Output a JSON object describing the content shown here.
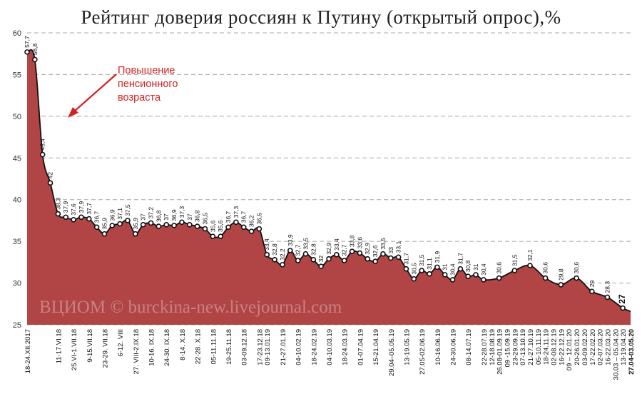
{
  "chart_data": {
    "type": "area",
    "title": "Рейтинг доверия россиян к Путину (открытый опрос),%",
    "ylim": [
      25,
      60
    ],
    "yticks": [
      25,
      30,
      35,
      40,
      45,
      50,
      55,
      60
    ],
    "grid": true,
    "fill_color": "#b14444",
    "line_color": "#111111",
    "annotation": {
      "text": [
        "Повышение",
        "пенсионного",
        "возраста"
      ],
      "color": "#d32020"
    },
    "watermark": "ВЦИОМ © burckina-new.livejournal.com",
    "points": [
      {
        "x": "18-24.XII.2017",
        "y": 57.7
      },
      {
        "x": "",
        "y": 56.8
      },
      {
        "x": "",
        "y": 45.4
      },
      {
        "x": "",
        "y": 42
      },
      {
        "x": "11-17.VI.18",
        "y": 38.3
      },
      {
        "x": "",
        "y": 37.9
      },
      {
        "x": "25.VI-1.VII.18",
        "y": 37.6
      },
      {
        "x": "",
        "y": 37.9
      },
      {
        "x": "9-15.VII.18",
        "y": 37.7
      },
      {
        "x": "",
        "y": 36.7
      },
      {
        "x": "23-29. VII.18",
        "y": 35.9
      },
      {
        "x": "",
        "y": 36.9
      },
      {
        "x": "6-12. VIII",
        "y": 37.1
      },
      {
        "x": "",
        "y": 37.5
      },
      {
        "x": "27. VIII-2.IX.18",
        "y": 35.9
      },
      {
        "x": "",
        "y": 37
      },
      {
        "x": "10-16. IX.18",
        "y": 37.2
      },
      {
        "x": "",
        "y": 36.8
      },
      {
        "x": "24-30. IX.18",
        "y": 37
      },
      {
        "x": "",
        "y": 36.9
      },
      {
        "x": "8-14. X.18",
        "y": 37.3
      },
      {
        "x": "",
        "y": 37
      },
      {
        "x": "22-28. X.18",
        "y": 36.8
      },
      {
        "x": "",
        "y": 36.5
      },
      {
        "x": "05-11.11.18",
        "y": 35.6
      },
      {
        "x": "",
        "y": 35.6
      },
      {
        "x": "19-25.11.18",
        "y": 36.7
      },
      {
        "x": "",
        "y": 37.3
      },
      {
        "x": "03-09.12.18",
        "y": 36.7
      },
      {
        "x": "",
        "y": 36.2
      },
      {
        "x": "17-23.12.18",
        "y": 36.5
      },
      {
        "x": "09-13.01.19",
        "y": 33.4
      },
      {
        "x": "",
        "y": 32.8
      },
      {
        "x": "21-27.01.19",
        "y": 32.2
      },
      {
        "x": "",
        "y": 33.9
      },
      {
        "x": "04-10.02.19",
        "y": 32.7
      },
      {
        "x": "",
        "y": 33.5
      },
      {
        "x": "18-24.02.19",
        "y": 32.8
      },
      {
        "x": "",
        "y": 32
      },
      {
        "x": "04-10.03.19",
        "y": 32.9
      },
      {
        "x": "",
        "y": 33.4
      },
      {
        "x": "18-24.03.19",
        "y": 32.7
      },
      {
        "x": "",
        "y": 33.8
      },
      {
        "x": "01-07.04.19",
        "y": 33.6
      },
      {
        "x": "",
        "y": 32.9
      },
      {
        "x": "15-21.04.19",
        "y": 32.6
      },
      {
        "x": "",
        "y": 33.5
      },
      {
        "x": "29.04–05.05.19",
        "y": 33
      },
      {
        "x": "",
        "y": 33.1
      },
      {
        "x": "13-19.05.19",
        "y": 31.7
      },
      {
        "x": "",
        "y": 30.5
      },
      {
        "x": "27.05-02.06.19",
        "y": 31.5
      },
      {
        "x": "",
        "y": 31.1
      },
      {
        "x": "10-16.06.19",
        "y": 31.9
      },
      {
        "x": "",
        "y": 31
      },
      {
        "x": "24-30.06.19",
        "y": 30.4
      },
      {
        "x": "",
        "y": 31.7
      },
      {
        "x": "08-14.07.19",
        "y": 30.8
      },
      {
        "x": "",
        "y": 31
      },
      {
        "x": "22-28.07.19",
        "y": 30.4
      },
      {
        "x": "12-18.08.19",
        "y": null
      },
      {
        "x": "26.08-01.09.19",
        "y": 30.6
      },
      {
        "x": "09 -15.09.19",
        "y": null
      },
      {
        "x": "23-29.09.19",
        "y": 31.5
      },
      {
        "x": "07-13.10.19",
        "y": null
      },
      {
        "x": "21-27.10.19",
        "y": 32.1
      },
      {
        "x": "05-10.11.19",
        "y": null
      },
      {
        "x": "18-24.11.19",
        "y": 30.6
      },
      {
        "x": "02-08.12.19",
        "y": null
      },
      {
        "x": "16-22.12.19",
        "y": 29.8
      },
      {
        "x": "09 – 12.01.20",
        "y": null
      },
      {
        "x": "20-26.01.20",
        "y": 30.6
      },
      {
        "x": "03-09.02.20",
        "y": null
      },
      {
        "x": "17-22.02.20",
        "y": 29
      },
      {
        "x": "02-07.03.20",
        "y": null
      },
      {
        "x": "16-22.03.20",
        "y": 28.3
      },
      {
        "x": "30.03 – 05.04.20",
        "y": null
      },
      {
        "x": "13-19.04.20",
        "y": 27
      },
      {
        "x": "27.04-03.05.20",
        "y": 26.6
      }
    ]
  }
}
